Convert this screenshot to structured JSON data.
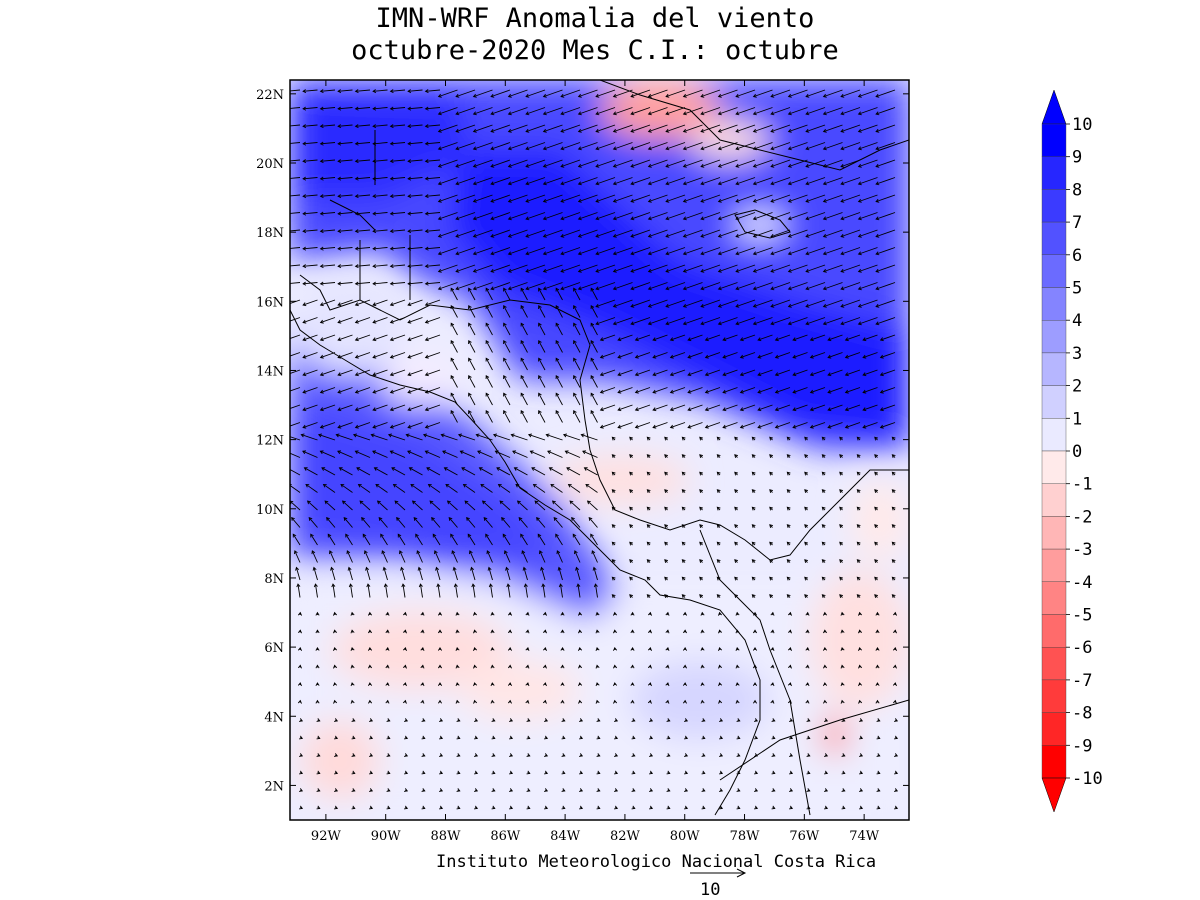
{
  "title_line1": "IMN-WRF Anomalia del viento",
  "title_line2": "octubre-2020 Mes C.I.: octubre",
  "credit": "Instituto Meteorologico Nacional Costa Rica",
  "reference_vector_value": "10",
  "axes": {
    "lon_labels": [
      "92W",
      "90W",
      "88W",
      "86W",
      "84W",
      "82W",
      "80W",
      "78W",
      "76W",
      "74W"
    ],
    "lon_values": [
      -92,
      -90,
      -88,
      -86,
      -84,
      -82,
      -80,
      -78,
      -76,
      -74
    ],
    "lat_labels": [
      "2N",
      "4N",
      "6N",
      "8N",
      "10N",
      "12N",
      "14N",
      "16N",
      "18N",
      "20N",
      "22N"
    ],
    "lat_values": [
      2,
      4,
      6,
      8,
      10,
      12,
      14,
      16,
      18,
      20,
      22
    ],
    "lon_range": [
      -93.2,
      -72.5
    ],
    "lat_range": [
      1.0,
      22.4
    ]
  },
  "colorbar": {
    "labels": [
      "10",
      "9",
      "8",
      "7",
      "6",
      "5",
      "4",
      "3",
      "2",
      "1",
      "0",
      "-1",
      "-2",
      "-3",
      "-4",
      "-5",
      "-6",
      "-7",
      "-8",
      "-9",
      "-10"
    ],
    "colors": [
      "#0000ff",
      "#2626ff",
      "#3b3bff",
      "#5252ff",
      "#6b6bff",
      "#8484ff",
      "#9d9dff",
      "#b6b6ff",
      "#d0d0ff",
      "#eaeaff",
      "#ffeaea",
      "#ffd0d0",
      "#ffb6b6",
      "#ff9d9d",
      "#ff8484",
      "#ff6b6b",
      "#ff5252",
      "#ff3b3b",
      "#ff2626",
      "#ff0000"
    ],
    "upper_arrow_color": "#0000ff",
    "lower_arrow_color": "#ff0000"
  }
}
